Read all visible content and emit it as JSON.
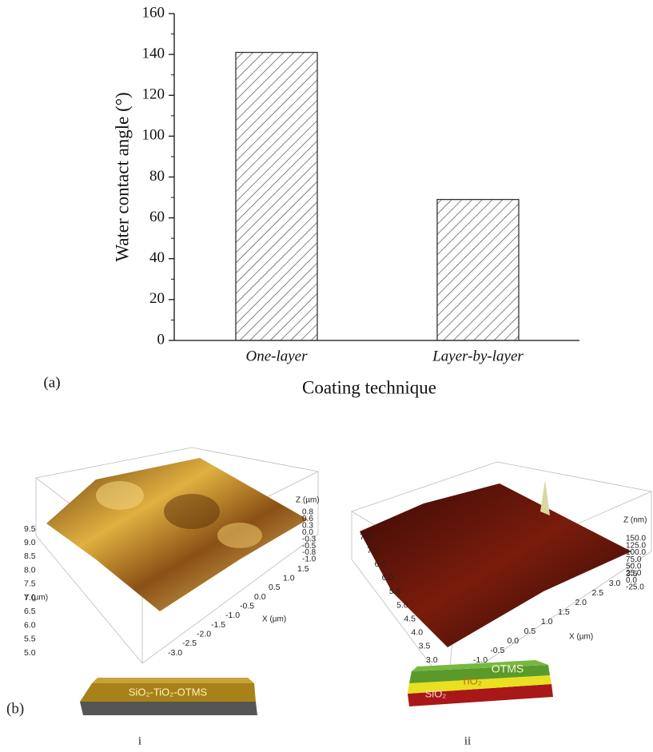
{
  "chart_data": {
    "type": "bar",
    "ylabel": "Water contact angle (°)",
    "xlabel": "Coating technique",
    "panel_label": "(a)",
    "categories": [
      "One-layer",
      "Layer-by-layer"
    ],
    "values": [
      141,
      69
    ],
    "color": "#333333",
    "hatch": true,
    "ylim": [
      0,
      160
    ],
    "yticks": [
      0,
      20,
      40,
      60,
      80,
      100,
      120,
      140,
      160
    ]
  },
  "panel_b": {
    "panel_label": "(b)",
    "left": {
      "sub_label": "i",
      "z_title": "Z (µm)",
      "z_labels": [
        "0.8",
        "0.6",
        "0.3",
        "0.0",
        "-0.3",
        "-0.5",
        "-0.8",
        "-1.0"
      ],
      "y_title": "Y (µm)",
      "y_labels": [
        "9.5",
        "9.0",
        "8.5",
        "8.0",
        "7.5",
        "7.0",
        "6.5",
        "6.0",
        "5.5",
        "5.0"
      ],
      "x_title": "X (µm)",
      "x_labels": [
        "1.5",
        "1.0",
        "0.5",
        "0.0",
        "-0.5",
        "-1.0",
        "-1.5",
        "-2.0",
        "-2.5",
        "-3.0"
      ],
      "layer_text": "SiO₂-TiO₂-OTMS"
    },
    "right": {
      "sub_label": "ii",
      "z_title": "Z (nm)",
      "z_labels": [
        "150.0",
        "125.0",
        "100.0",
        "75.0",
        "50.0",
        "25.0",
        "0.0",
        "-25.0"
      ],
      "y_labels": [
        "7.5",
        "7.0",
        "6.5",
        "6.0",
        "5.5",
        "5.0",
        "4.5",
        "4.0",
        "3.5",
        "3.0"
      ],
      "x_title": "X (µm)",
      "x_labels": [
        "3.5",
        "3.0",
        "2.5",
        "2.0",
        "1.5",
        "1.0",
        "0.5",
        "0.0",
        "-0.5",
        "-1.0"
      ],
      "layer_top": "OTMS",
      "layer_mid": "TiO₂",
      "layer_bottom": "SiO₂"
    }
  }
}
